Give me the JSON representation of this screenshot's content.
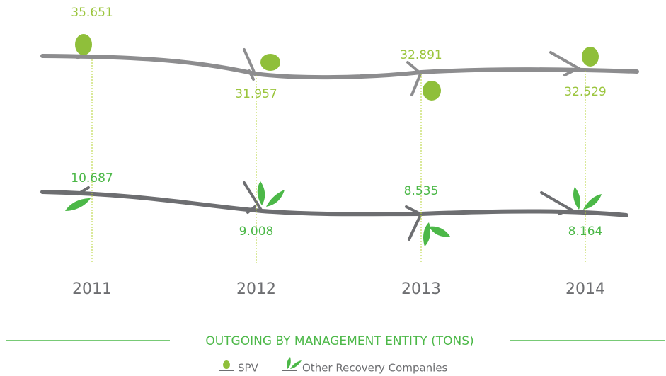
{
  "years": [
    "2011",
    "2012",
    "2013",
    "2014"
  ],
  "series": [
    {
      "name": "SPV",
      "values": [
        "35.651",
        "31.957",
        "32.891",
        "32.529"
      ]
    },
    {
      "name": "Other Recovery Companies",
      "values": [
        "10.687",
        "9.008",
        "8.535",
        "8.164"
      ]
    }
  ],
  "title": "OUTGOING BY MANAGEMENT ENTITY  (TONS)"
}
